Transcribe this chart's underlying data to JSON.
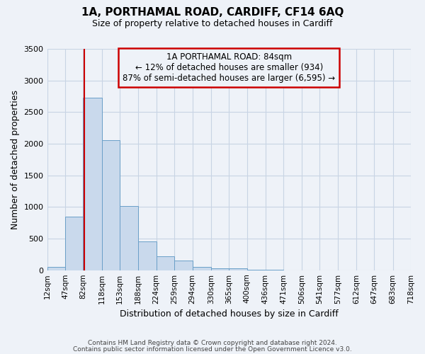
{
  "title": "1A, PORTHAMAL ROAD, CARDIFF, CF14 6AQ",
  "subtitle": "Size of property relative to detached houses in Cardiff",
  "xlabel": "Distribution of detached houses by size in Cardiff",
  "ylabel": "Number of detached properties",
  "bar_color": "#c9d9ec",
  "bar_edge_color": "#6a9fc8",
  "grid_color": "#c8d4e4",
  "background_color": "#eef2f8",
  "annotation_box_color": "#cc0000",
  "vline_color": "#cc0000",
  "vline_x": 84,
  "bin_edges": [
    12,
    47,
    82,
    118,
    153,
    188,
    224,
    259,
    294,
    330,
    365,
    400,
    436,
    471,
    506,
    541,
    577,
    612,
    647,
    683,
    718
  ],
  "bin_counts": [
    55,
    850,
    2730,
    2060,
    1020,
    460,
    215,
    155,
    55,
    30,
    25,
    10,
    5,
    2,
    2,
    2,
    0,
    0,
    0,
    2
  ],
  "tick_labels": [
    "12sqm",
    "47sqm",
    "82sqm",
    "118sqm",
    "153sqm",
    "188sqm",
    "224sqm",
    "259sqm",
    "294sqm",
    "330sqm",
    "365sqm",
    "400sqm",
    "436sqm",
    "471sqm",
    "506sqm",
    "541sqm",
    "577sqm",
    "612sqm",
    "647sqm",
    "683sqm",
    "718sqm"
  ],
  "ylim": [
    0,
    3500
  ],
  "yticks": [
    0,
    500,
    1000,
    1500,
    2000,
    2500,
    3000,
    3500
  ],
  "annotation_title": "1A PORTHAMAL ROAD: 84sqm",
  "annotation_line1": "← 12% of detached houses are smaller (934)",
  "annotation_line2": "87% of semi-detached houses are larger (6,595) →",
  "footer1": "Contains HM Land Registry data © Crown copyright and database right 2024.",
  "footer2": "Contains public sector information licensed under the Open Government Licence v3.0."
}
